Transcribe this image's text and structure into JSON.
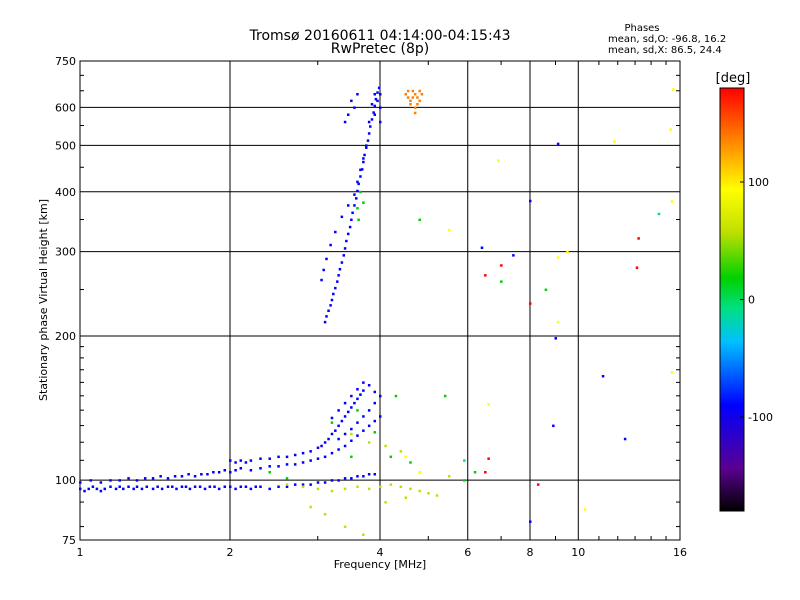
{
  "chart_data": {
    "type": "scatter",
    "title": "Tromsø 20160611 04:14:00-04:15:43",
    "subtitle": "RwPretec (8p)",
    "xlabel": "Frequency [MHz]",
    "ylabel": "Stationary phase Virtual Height [km]",
    "x_scale": "log",
    "y_scale": "log",
    "xlim": [
      1,
      16
    ],
    "ylim": [
      75,
      750
    ],
    "x_ticks": [
      1,
      2,
      4,
      6,
      8,
      10,
      16
    ],
    "y_ticks": [
      75,
      100,
      200,
      300,
      400,
      500,
      600,
      750
    ],
    "grid": true,
    "stats": {
      "heading": "Phases",
      "line1": "mean, sd,O: -96.8, 16.2",
      "line2": "mean, sd,X: 86.5, 24.4"
    },
    "colorbar": {
      "label": "[deg]",
      "range": [
        -180,
        180
      ],
      "ticks": [
        100,
        0,
        -100
      ],
      "tick_labels": [
        "100",
        "0",
        "-100"
      ],
      "colormap": [
        "#000000",
        "#5a0090",
        "#0000ff",
        "#00c0ff",
        "#00e080",
        "#00d000",
        "#c0e000",
        "#ffff00",
        "#ff8000",
        "#ff0000"
      ]
    },
    "groups": [
      {
        "id": "e-layer-low",
        "phase": -100,
        "points": [
          [
            1.0,
            96
          ],
          [
            1.02,
            95
          ],
          [
            1.04,
            96
          ],
          [
            1.06,
            97
          ],
          [
            1.08,
            96
          ],
          [
            1.1,
            95
          ],
          [
            1.12,
            96
          ],
          [
            1.15,
            97
          ],
          [
            1.18,
            96
          ],
          [
            1.2,
            97
          ],
          [
            1.22,
            96
          ],
          [
            1.25,
            97
          ],
          [
            1.28,
            96
          ],
          [
            1.3,
            97
          ],
          [
            1.33,
            96
          ],
          [
            1.36,
            97
          ],
          [
            1.4,
            96
          ],
          [
            1.43,
            97
          ],
          [
            1.46,
            96
          ],
          [
            1.5,
            97
          ],
          [
            1.53,
            97
          ],
          [
            1.56,
            96
          ],
          [
            1.6,
            97
          ],
          [
            1.63,
            97
          ],
          [
            1.66,
            96
          ],
          [
            1.7,
            97
          ],
          [
            1.74,
            97
          ],
          [
            1.78,
            96
          ],
          [
            1.82,
            97
          ],
          [
            1.86,
            97
          ],
          [
            1.9,
            96
          ],
          [
            1.95,
            97
          ],
          [
            2.0,
            97
          ],
          [
            2.05,
            96
          ],
          [
            2.1,
            97
          ],
          [
            2.15,
            97
          ],
          [
            2.2,
            96
          ],
          [
            2.25,
            97
          ],
          [
            2.3,
            97
          ],
          [
            2.4,
            96
          ],
          [
            2.5,
            97
          ],
          [
            2.6,
            97
          ],
          [
            2.7,
            98
          ],
          [
            2.8,
            98
          ],
          [
            2.9,
            98
          ],
          [
            3.0,
            99
          ],
          [
            3.1,
            99
          ],
          [
            3.2,
            100
          ],
          [
            3.3,
            100
          ],
          [
            3.4,
            101
          ],
          [
            3.5,
            101
          ],
          [
            3.6,
            102
          ],
          [
            3.7,
            102
          ],
          [
            3.8,
            103
          ],
          [
            3.9,
            103
          ]
        ]
      },
      {
        "id": "e-layer-mid",
        "phase": -100,
        "points": [
          [
            1.0,
            99
          ],
          [
            1.05,
            100
          ],
          [
            1.1,
            99
          ],
          [
            1.15,
            100
          ],
          [
            1.2,
            100
          ],
          [
            1.25,
            101
          ],
          [
            1.3,
            100
          ],
          [
            1.35,
            101
          ],
          [
            1.4,
            101
          ],
          [
            1.45,
            102
          ],
          [
            1.5,
            101
          ],
          [
            1.55,
            102
          ],
          [
            1.6,
            102
          ],
          [
            1.65,
            103
          ],
          [
            1.7,
            102
          ],
          [
            1.75,
            103
          ],
          [
            1.8,
            103
          ],
          [
            1.85,
            104
          ],
          [
            1.9,
            104
          ],
          [
            1.95,
            105
          ],
          [
            2.0,
            104
          ],
          [
            2.05,
            105
          ],
          [
            2.1,
            106
          ],
          [
            2.2,
            105
          ],
          [
            2.3,
            106
          ],
          [
            2.4,
            107
          ],
          [
            2.5,
            107
          ],
          [
            2.6,
            108
          ],
          [
            2.7,
            108
          ],
          [
            2.8,
            109
          ],
          [
            2.9,
            110
          ],
          [
            3.0,
            111
          ],
          [
            3.1,
            112
          ],
          [
            3.2,
            114
          ],
          [
            3.3,
            116
          ],
          [
            3.4,
            118
          ],
          [
            3.5,
            121
          ],
          [
            3.6,
            124
          ],
          [
            3.7,
            127
          ],
          [
            3.8,
            130
          ],
          [
            3.9,
            133
          ],
          [
            4.0,
            136
          ]
        ]
      },
      {
        "id": "e-layer-upper",
        "phase": -100,
        "points": [
          [
            2.0,
            110
          ],
          [
            2.05,
            109
          ],
          [
            2.1,
            110
          ],
          [
            2.15,
            109
          ],
          [
            2.2,
            110
          ],
          [
            2.3,
            111
          ],
          [
            2.4,
            111
          ],
          [
            2.5,
            112
          ],
          [
            2.6,
            112
          ],
          [
            2.7,
            113
          ],
          [
            2.8,
            114
          ],
          [
            2.9,
            115
          ],
          [
            3.0,
            117
          ],
          [
            3.05,
            118
          ],
          [
            3.1,
            120
          ],
          [
            3.15,
            122
          ],
          [
            3.2,
            125
          ],
          [
            3.25,
            127
          ],
          [
            3.3,
            130
          ],
          [
            3.35,
            133
          ],
          [
            3.4,
            136
          ],
          [
            3.45,
            139
          ],
          [
            3.5,
            142
          ],
          [
            3.55,
            145
          ],
          [
            3.6,
            148
          ],
          [
            3.65,
            151
          ],
          [
            3.7,
            154
          ],
          [
            3.3,
            122
          ],
          [
            3.4,
            125
          ],
          [
            3.5,
            128
          ],
          [
            3.6,
            132
          ],
          [
            3.7,
            136
          ],
          [
            3.8,
            140
          ],
          [
            3.9,
            145
          ],
          [
            4.0,
            150
          ],
          [
            3.2,
            135
          ],
          [
            3.3,
            140
          ],
          [
            3.4,
            145
          ],
          [
            3.5,
            150
          ],
          [
            3.6,
            155
          ],
          [
            3.7,
            160
          ],
          [
            3.8,
            158
          ],
          [
            3.9,
            153
          ]
        ]
      },
      {
        "id": "scatter-low-mixed",
        "phase": 60,
        "points": [
          [
            2.6,
            98
          ],
          [
            2.8,
            97
          ],
          [
            3.0,
            96
          ],
          [
            3.2,
            95
          ],
          [
            3.4,
            96
          ],
          [
            3.6,
            97
          ],
          [
            3.8,
            96
          ],
          [
            4.0,
            97
          ],
          [
            4.2,
            98
          ],
          [
            4.4,
            97
          ],
          [
            4.6,
            96
          ],
          [
            4.8,
            95
          ],
          [
            5.0,
            94
          ],
          [
            5.2,
            93
          ],
          [
            2.9,
            88
          ],
          [
            3.1,
            85
          ],
          [
            3.4,
            80
          ],
          [
            3.7,
            77
          ],
          [
            4.1,
            90
          ],
          [
            4.5,
            92
          ],
          [
            5.5,
            102
          ],
          [
            3.5,
            125
          ],
          [
            3.8,
            120
          ],
          [
            4.1,
            118
          ],
          [
            4.4,
            115
          ]
        ]
      },
      {
        "id": "scatter-cyan",
        "phase": 0,
        "points": [
          [
            2.4,
            104
          ],
          [
            2.6,
            101
          ],
          [
            3.2,
            132
          ],
          [
            3.6,
            140
          ],
          [
            3.9,
            126
          ],
          [
            4.2,
            112
          ],
          [
            4.6,
            109
          ],
          [
            5.4,
            150
          ],
          [
            4.3,
            150
          ],
          [
            3.5,
            112
          ]
        ]
      },
      {
        "id": "f-layer-trace",
        "phase": -100,
        "points": [
          [
            3.1,
            214
          ],
          [
            3.12,
            220
          ],
          [
            3.15,
            226
          ],
          [
            3.18,
            232
          ],
          [
            3.2,
            238
          ],
          [
            3.22,
            245
          ],
          [
            3.25,
            252
          ],
          [
            3.28,
            260
          ],
          [
            3.3,
            268
          ],
          [
            3.32,
            276
          ],
          [
            3.35,
            285
          ],
          [
            3.38,
            295
          ],
          [
            3.4,
            305
          ],
          [
            3.42,
            316
          ],
          [
            3.45,
            327
          ],
          [
            3.48,
            338
          ],
          [
            3.5,
            350
          ],
          [
            3.52,
            362
          ],
          [
            3.55,
            375
          ],
          [
            3.58,
            388
          ],
          [
            3.6,
            402
          ],
          [
            3.62,
            416
          ],
          [
            3.65,
            431
          ],
          [
            3.68,
            446
          ],
          [
            3.7,
            462
          ],
          [
            3.72,
            478
          ],
          [
            3.75,
            495
          ],
          [
            3.78,
            512
          ],
          [
            3.8,
            530
          ],
          [
            3.82,
            548
          ],
          [
            3.85,
            567
          ],
          [
            3.88,
            586
          ],
          [
            3.9,
            605
          ],
          [
            3.92,
            625
          ],
          [
            3.95,
            645
          ],
          [
            3.98,
            660
          ],
          [
            3.05,
            262
          ],
          [
            3.08,
            275
          ],
          [
            3.12,
            290
          ],
          [
            3.18,
            310
          ],
          [
            3.25,
            330
          ],
          [
            3.35,
            355
          ],
          [
            3.45,
            375
          ],
          [
            3.55,
            395
          ],
          [
            3.6,
            420
          ],
          [
            3.65,
            445
          ],
          [
            3.7,
            470
          ],
          [
            3.75,
            500
          ],
          [
            3.8,
            560
          ],
          [
            3.85,
            610
          ],
          [
            3.9,
            640
          ],
          [
            3.95,
            620
          ],
          [
            4.0,
            600
          ],
          [
            3.9,
            580
          ],
          [
            4.0,
            560
          ],
          [
            4.0,
            640
          ],
          [
            3.55,
            600
          ],
          [
            3.6,
            640
          ],
          [
            3.5,
            620
          ],
          [
            3.45,
            580
          ],
          [
            3.4,
            560
          ]
        ]
      },
      {
        "id": "f-layer-cyan",
        "phase": 10,
        "points": [
          [
            3.6,
            370
          ],
          [
            3.7,
            380
          ],
          [
            3.65,
            400
          ],
          [
            3.62,
            350
          ]
        ]
      },
      {
        "id": "f-layer-yellow-cluster",
        "phase": 120,
        "points": [
          [
            4.5,
            640
          ],
          [
            4.55,
            630
          ],
          [
            4.6,
            620
          ],
          [
            4.65,
            630
          ],
          [
            4.7,
            640
          ],
          [
            4.75,
            630
          ],
          [
            4.8,
            620
          ],
          [
            4.6,
            610
          ],
          [
            4.7,
            600
          ],
          [
            4.75,
            610
          ],
          [
            4.65,
            650
          ],
          [
            4.55,
            650
          ],
          [
            4.8,
            650
          ],
          [
            4.85,
            640
          ],
          [
            4.7,
            585
          ]
        ]
      },
      {
        "id": "sparse-high",
        "phase": -100,
        "points": [
          [
            6.4,
            306
          ],
          [
            7.4,
            295
          ],
          [
            8.0,
            383
          ],
          [
            9.0,
            198
          ],
          [
            8.0,
            82
          ],
          [
            11.2,
            165
          ],
          [
            12.4,
            122
          ],
          [
            9.1,
            504
          ],
          [
            8.9,
            130
          ]
        ]
      },
      {
        "id": "sparse-high-warm",
        "phase": 160,
        "points": [
          [
            6.5,
            268
          ],
          [
            7.0,
            281
          ],
          [
            8.0,
            234
          ],
          [
            13.2,
            320
          ],
          [
            13.1,
            278
          ],
          [
            8.3,
            98
          ],
          [
            6.5,
            104
          ],
          [
            6.6,
            111
          ]
        ]
      },
      {
        "id": "sparse-high-yellow",
        "phase": 110,
        "points": [
          [
            5.5,
            333
          ],
          [
            6.9,
            465
          ],
          [
            9.1,
            214
          ],
          [
            9.1,
            292
          ],
          [
            9.5,
            300
          ],
          [
            11.8,
            510
          ],
          [
            15.3,
            540
          ],
          [
            15.5,
            655
          ],
          [
            15.4,
            382
          ],
          [
            15.4,
            168
          ],
          [
            6.6,
            144
          ],
          [
            10.3,
            87
          ],
          [
            4.5,
            112
          ],
          [
            4.8,
            104
          ]
        ]
      },
      {
        "id": "sparse-high-green",
        "phase": 30,
        "points": [
          [
            4.8,
            350
          ],
          [
            7.0,
            260
          ],
          [
            8.6,
            250
          ],
          [
            5.9,
            100
          ],
          [
            6.2,
            104
          ]
        ]
      },
      {
        "id": "sparse-high-cyan",
        "phase": -20,
        "points": [
          [
            14.5,
            360
          ],
          [
            5.9,
            110
          ]
        ]
      }
    ]
  }
}
